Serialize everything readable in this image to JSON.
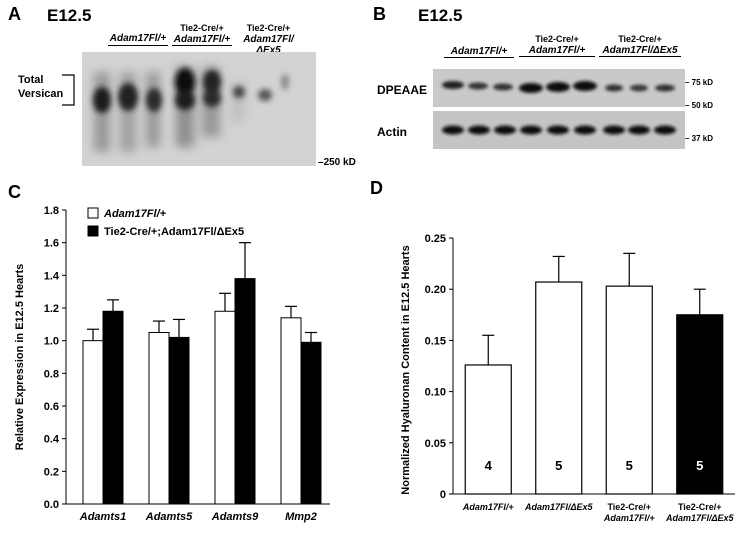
{
  "panelA": {
    "letter": "A",
    "stage": "E12.5",
    "groups": [
      {
        "line1": "",
        "line2": "Adam17Fl/+"
      },
      {
        "line1": "Tie2-Cre/+",
        "line2": "Adam17Fl/+"
      },
      {
        "line1": "Tie2-Cre/+",
        "line2": "Adam17Fl/ΔEx5"
      }
    ],
    "band_label_1": "Total",
    "band_label_2": "Versican",
    "marker": "250 kD"
  },
  "panelB": {
    "letter": "B",
    "stage": "E12.5",
    "groups": [
      {
        "line1": "",
        "line2": "Adam17Fl/+"
      },
      {
        "line1": "Tie2-Cre/+",
        "line2": "Adam17Fl/+"
      },
      {
        "line1": "Tie2-Cre/+",
        "line2": "Adam17Fl/ΔEx5"
      }
    ],
    "row1_label": "DPEAAE",
    "row2_label": "Actin",
    "markers": [
      "75 kD",
      "50 kD",
      "37 kD"
    ]
  },
  "colors": {
    "black": "#000000",
    "white": "#ffffff",
    "blot_bg": "#cfcfcf"
  },
  "chart_data": [
    {
      "panel": "C",
      "type": "bar",
      "ylabel": "Relative Expression in E12.5 Hearts",
      "ylim": [
        0,
        1.8
      ],
      "yticks": [
        "0.0",
        "0.2",
        "0.4",
        "0.6",
        "0.8",
        "1.0",
        "1.2",
        "1.4",
        "1.6",
        "1.8"
      ],
      "categories": [
        "Adamts1",
        "Adamts5",
        "Adamts9",
        "Mmp2"
      ],
      "legend": [
        "Adam17Fl/+",
        "Tie2-Cre/+;Adam17Fl/ΔEx5"
      ],
      "series": [
        {
          "name": "Adam17Fl/+",
          "color": "#ffffff",
          "values": [
            1.0,
            1.05,
            1.18,
            1.14
          ],
          "errors": [
            0.07,
            0.07,
            0.11,
            0.07
          ]
        },
        {
          "name": "Tie2-Cre/+;Adam17Fl/ΔEx5",
          "color": "#000000",
          "values": [
            1.18,
            1.02,
            1.38,
            0.99
          ],
          "errors": [
            0.07,
            0.11,
            0.22,
            0.06
          ]
        }
      ]
    },
    {
      "panel": "D",
      "type": "bar",
      "ylabel": "Normalized Hyaluronan Content in E12.5 Hearts",
      "ylim": [
        0,
        0.25
      ],
      "yticks": [
        "0",
        "0.05",
        "0.10",
        "0.15",
        "0.20",
        "0.25"
      ],
      "categories": [
        {
          "line1": "Adam17Fl/+",
          "line2": ""
        },
        {
          "line1": "Adam17Fl/ΔEx5",
          "line2": ""
        },
        {
          "line1": "Tie2-Cre/+",
          "line2": "Adam17Fl/+"
        },
        {
          "line1": "Tie2-Cre/+",
          "line2": "Adam17Fl/ΔEx5"
        }
      ],
      "values": [
        0.126,
        0.207,
        0.203,
        0.175
      ],
      "errors": [
        0.029,
        0.025,
        0.032,
        0.025
      ],
      "colors": [
        "#ffffff",
        "#ffffff",
        "#ffffff",
        "#000000"
      ],
      "n_labels": [
        "4",
        "5",
        "5",
        "5"
      ]
    }
  ],
  "panel_letters": {
    "C": "C",
    "D": "D"
  }
}
